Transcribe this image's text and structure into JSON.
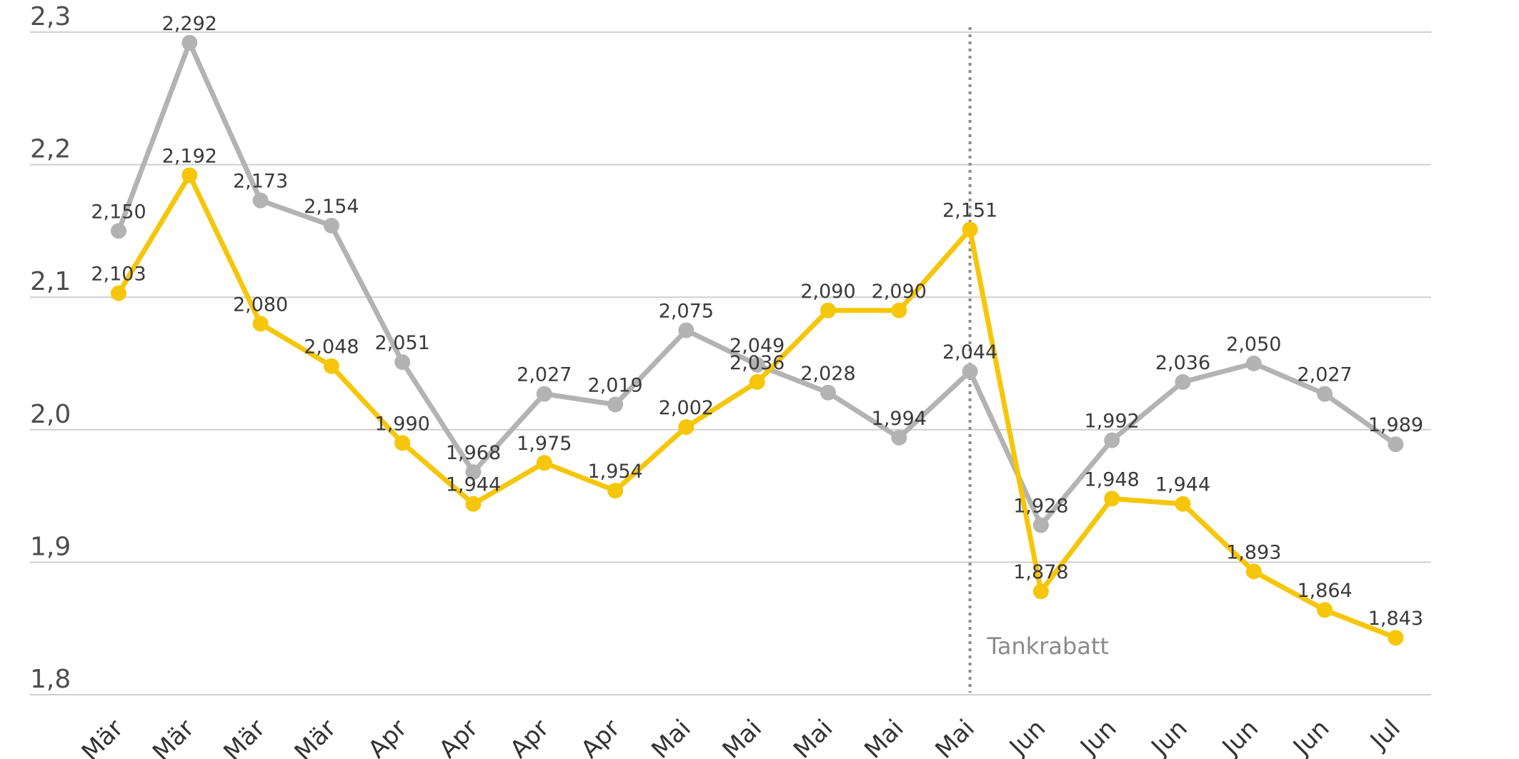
{
  "chart_data": {
    "type": "line",
    "title": "",
    "xlabel": "",
    "ylabel": "",
    "ylim": [
      1.8,
      2.3
    ],
    "yticks": [
      1.8,
      1.9,
      2.0,
      2.1,
      2.2,
      2.3
    ],
    "ytick_labels": [
      "1,8",
      "1,9",
      "2,0",
      "2,1",
      "2,2",
      "2,3"
    ],
    "grid": true,
    "categories": [
      "Mär",
      "Mär",
      "Mär",
      "Mär",
      "Apr",
      "Apr",
      "Apr",
      "Apr",
      "Mai",
      "Mai",
      "Mai",
      "Mai",
      "Mai",
      "Jun",
      "Jun",
      "Jun",
      "Jun",
      "Jun",
      "Jul"
    ],
    "series": [
      {
        "name": "grey",
        "color": "#b3b3b3",
        "values": [
          2.15,
          2.292,
          2.173,
          2.154,
          2.051,
          1.968,
          2.027,
          2.019,
          2.075,
          2.049,
          2.028,
          1.994,
          2.044,
          1.928,
          1.992,
          2.036,
          2.05,
          2.027,
          1.989
        ],
        "labels": [
          "2,150",
          "2,292",
          "2,173",
          "2,154",
          "2,051",
          "1,968",
          "2,027",
          "2,019",
          "2,075",
          "2,049",
          "2,028",
          "1,994",
          "2,044",
          "1,928",
          "1,992",
          "2,036",
          "2,050",
          "2,027",
          "1,989"
        ]
      },
      {
        "name": "yellow",
        "color": "#f5c60a",
        "values": [
          2.103,
          2.192,
          2.08,
          2.048,
          1.99,
          1.944,
          1.975,
          1.954,
          2.002,
          2.036,
          2.09,
          2.09,
          2.151,
          1.878,
          1.948,
          1.944,
          1.893,
          1.864,
          1.843
        ],
        "labels": [
          "2,103",
          "2,192",
          "2,080",
          "2,048",
          "1,990",
          "1,944",
          "1,975",
          "1,954",
          "2,002",
          "2,036",
          "2,090",
          "2,090",
          "2,151",
          "1,878",
          "1,948",
          "1,944",
          "1,893",
          "1,864",
          "1,843"
        ]
      }
    ],
    "annotations": [
      {
        "text": "Tankrabatt",
        "at_category_index": 12,
        "style": "dotted vertical line"
      }
    ]
  }
}
